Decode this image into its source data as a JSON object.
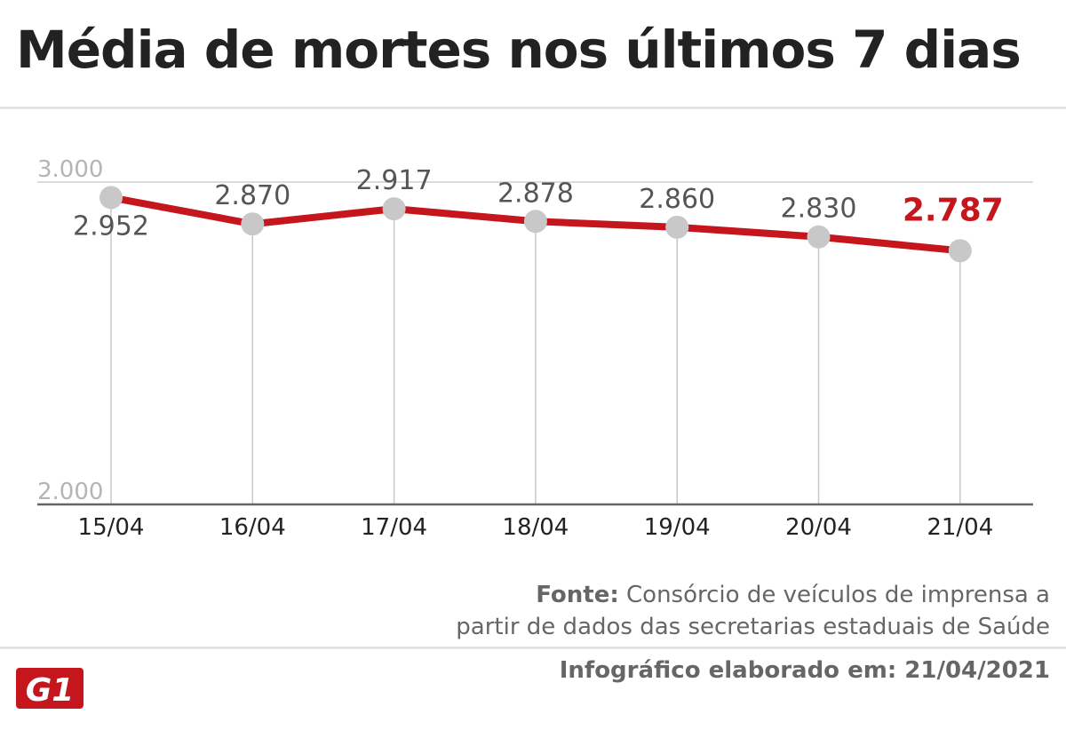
{
  "title": "Média de mortes nos últimos 7 dias",
  "source": {
    "label": "Fonte:",
    "line1": "Consórcio de veículos de imprensa a",
    "line2": "partir de dados das secretarias estaduais de Saúde"
  },
  "footer": {
    "date_text": "Infográfico elaborado em: 21/04/2021",
    "logo_text": "G1"
  },
  "colors": {
    "line": "#c4161c",
    "highlight_label": "#c4161c",
    "marker": "#c8c8c8",
    "label": "#555555",
    "gridline": "#c8c8c8",
    "axis": "#666666"
  },
  "chart_data": {
    "type": "line",
    "title": "Média de mortes nos últimos 7 dias",
    "xlabel": "",
    "ylabel": "",
    "categories": [
      "15/04",
      "16/04",
      "17/04",
      "18/04",
      "19/04",
      "20/04",
      "21/04"
    ],
    "series": [
      {
        "values": [
          2952,
          2870,
          2917,
          2878,
          2860,
          2830,
          2787
        ],
        "labels": [
          "2.952",
          "2.870",
          "2.917",
          "2.878",
          "2.860",
          "2.830",
          "2.787"
        ]
      }
    ],
    "ylim": [
      2000,
      3000
    ],
    "yticks": [
      2000,
      3000
    ],
    "ytick_labels": [
      "2.000",
      "3.000"
    ],
    "highlight_last": true,
    "grid": "vertical drop lines from each point"
  }
}
